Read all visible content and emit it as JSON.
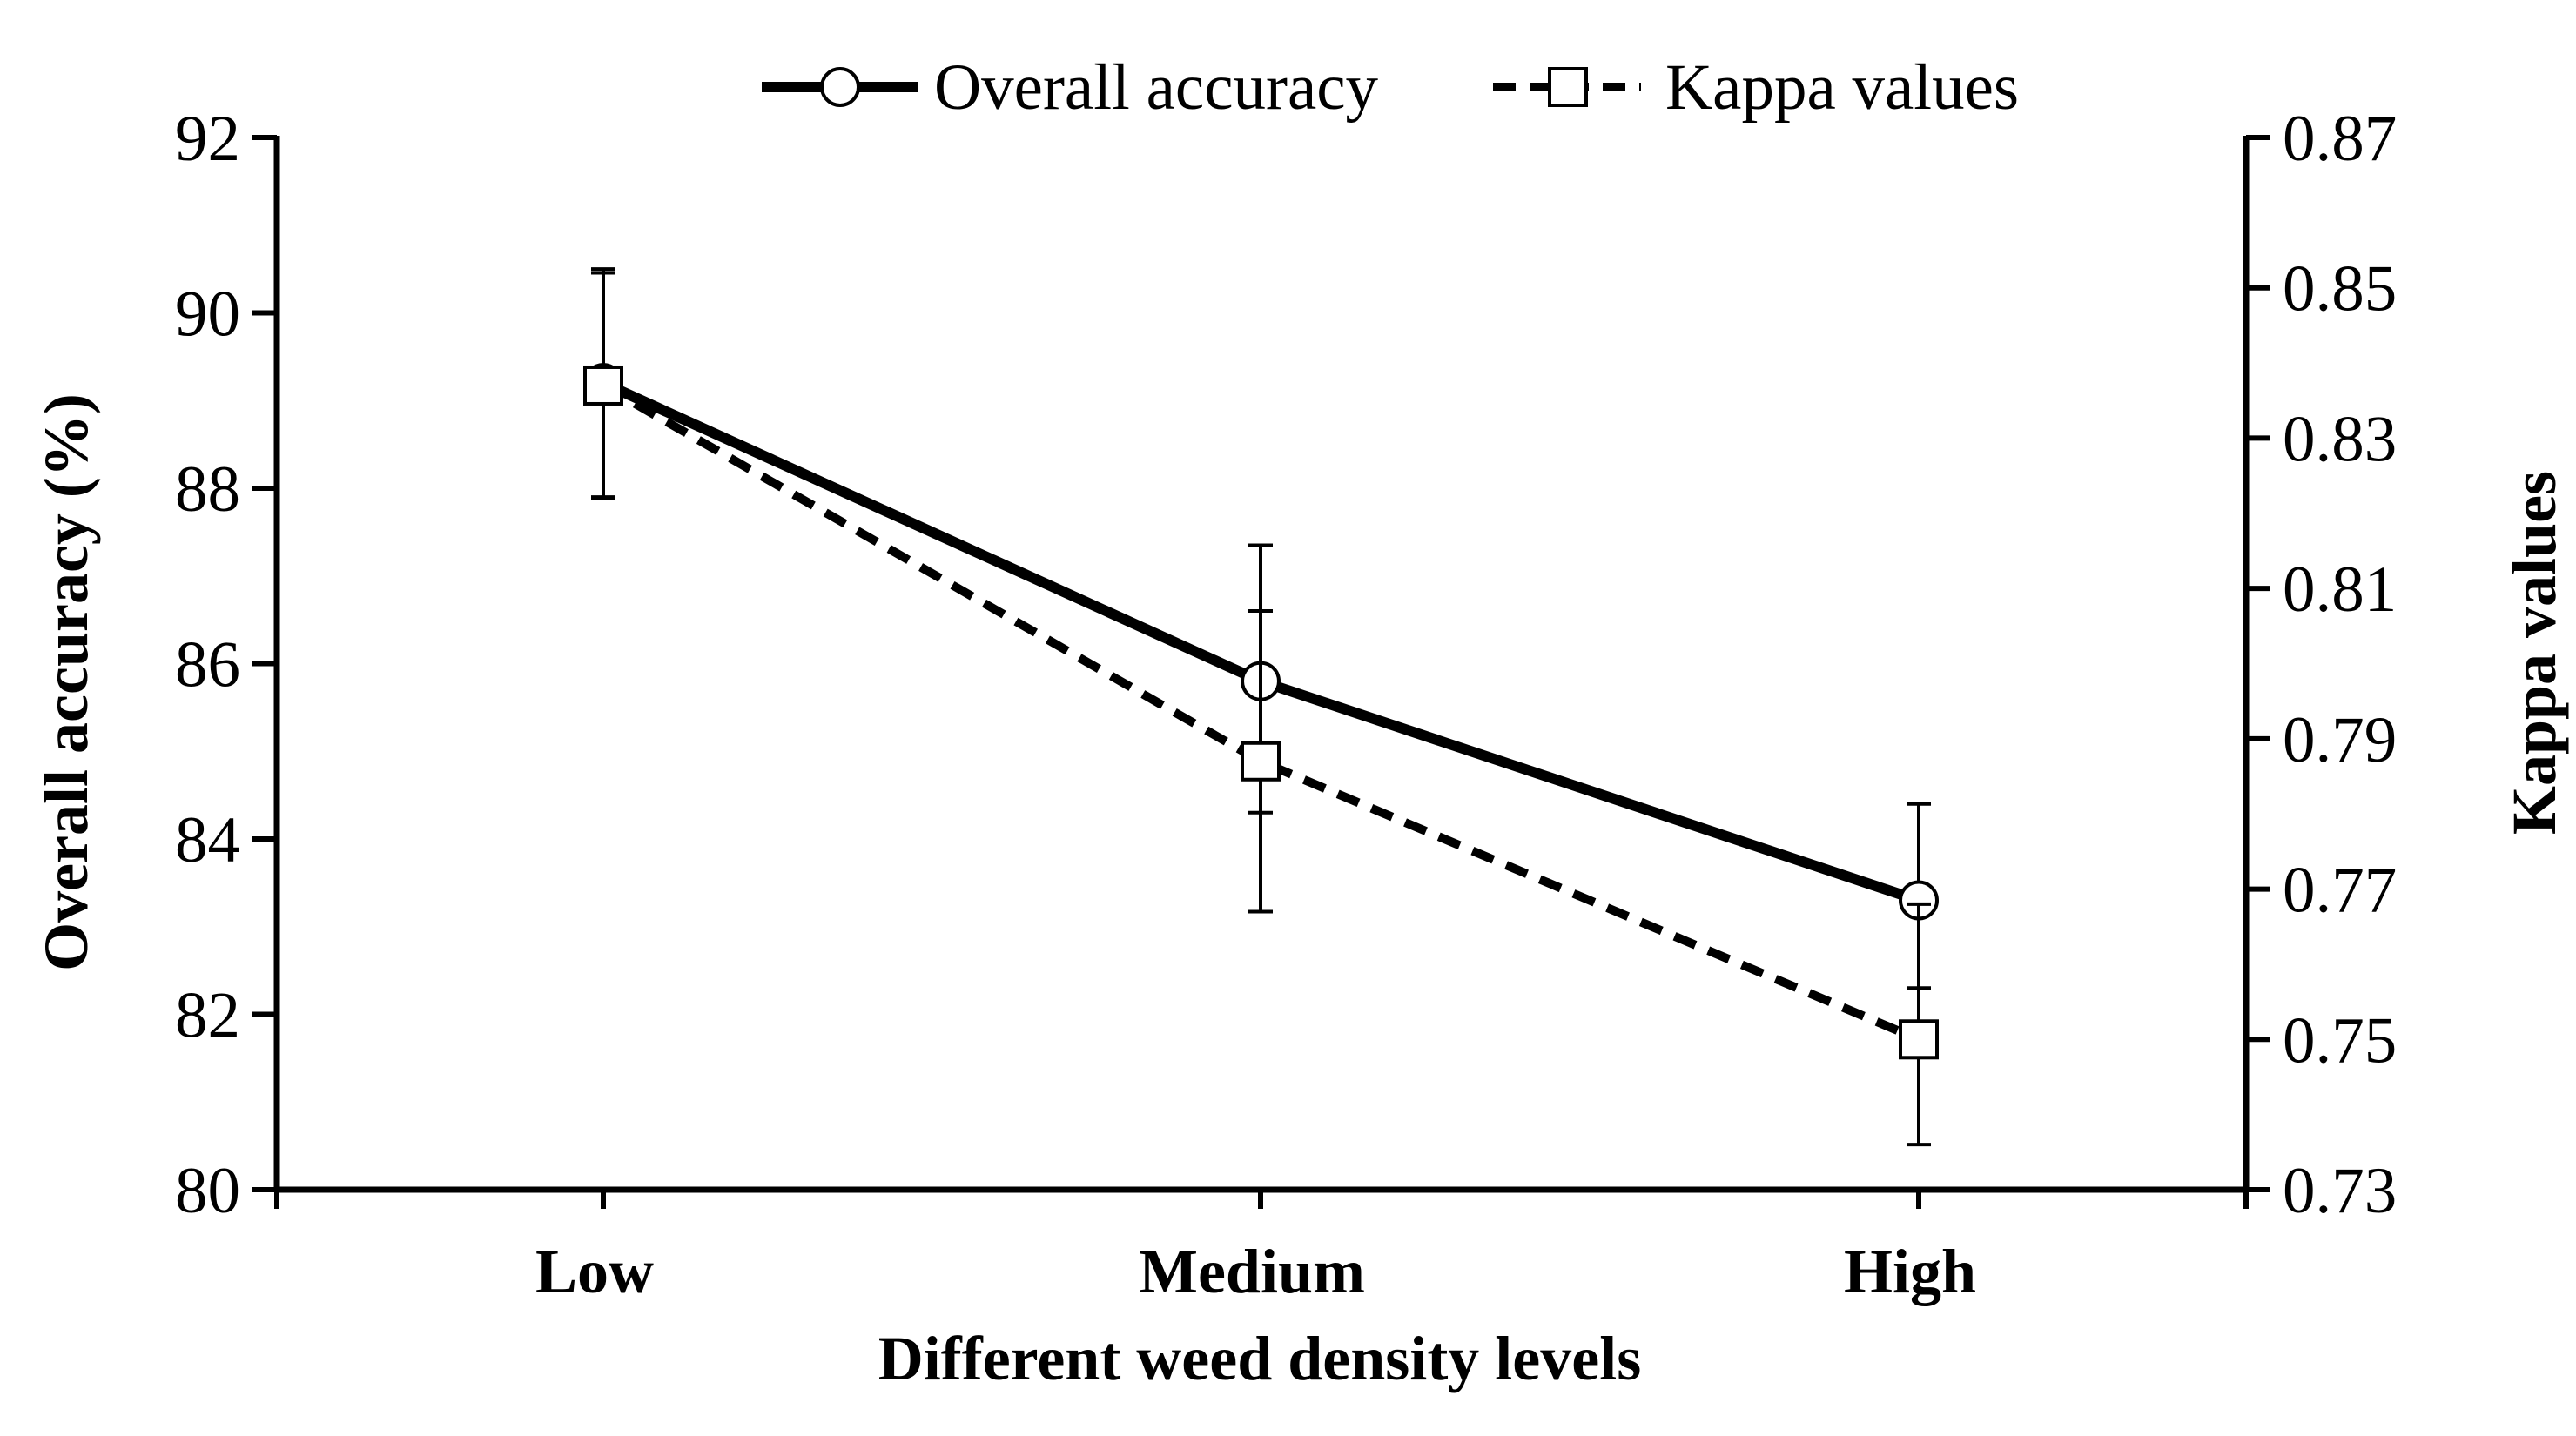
{
  "chart_data": {
    "type": "line",
    "title": "",
    "categories": [
      "Low",
      "Medium",
      "High"
    ],
    "xlabel": "Different weed density levels",
    "ylabel": "Overall accuracy (%)",
    "y2label": "Kappa values",
    "ylim": [
      80,
      92
    ],
    "y2lim": [
      0.73,
      0.87
    ],
    "yticks": [
      "80",
      "82",
      "84",
      "86",
      "88",
      "90",
      "92"
    ],
    "y2ticks": [
      "0.73",
      "0.75",
      "0.77",
      "0.79",
      "0.81",
      "0.83",
      "0.85",
      "0.87"
    ],
    "legend_position": "top-center",
    "grid": false,
    "series": [
      {
        "name": "Overall accuracy",
        "axis": "left",
        "style": "solid",
        "marker": "circle",
        "values": [
          89.2,
          85.8,
          83.3
        ],
        "err_low": [
          87.9,
          84.3,
          82.3
        ],
        "err_high": [
          90.5,
          87.35,
          84.4
        ]
      },
      {
        "name": "Kappa values",
        "axis": "right",
        "style": "dashed",
        "marker": "square",
        "values": [
          0.837,
          0.787,
          0.75
        ],
        "err_low": [
          0.822,
          0.767,
          0.736
        ],
        "err_high": [
          0.852,
          0.807,
          0.768
        ]
      }
    ]
  }
}
